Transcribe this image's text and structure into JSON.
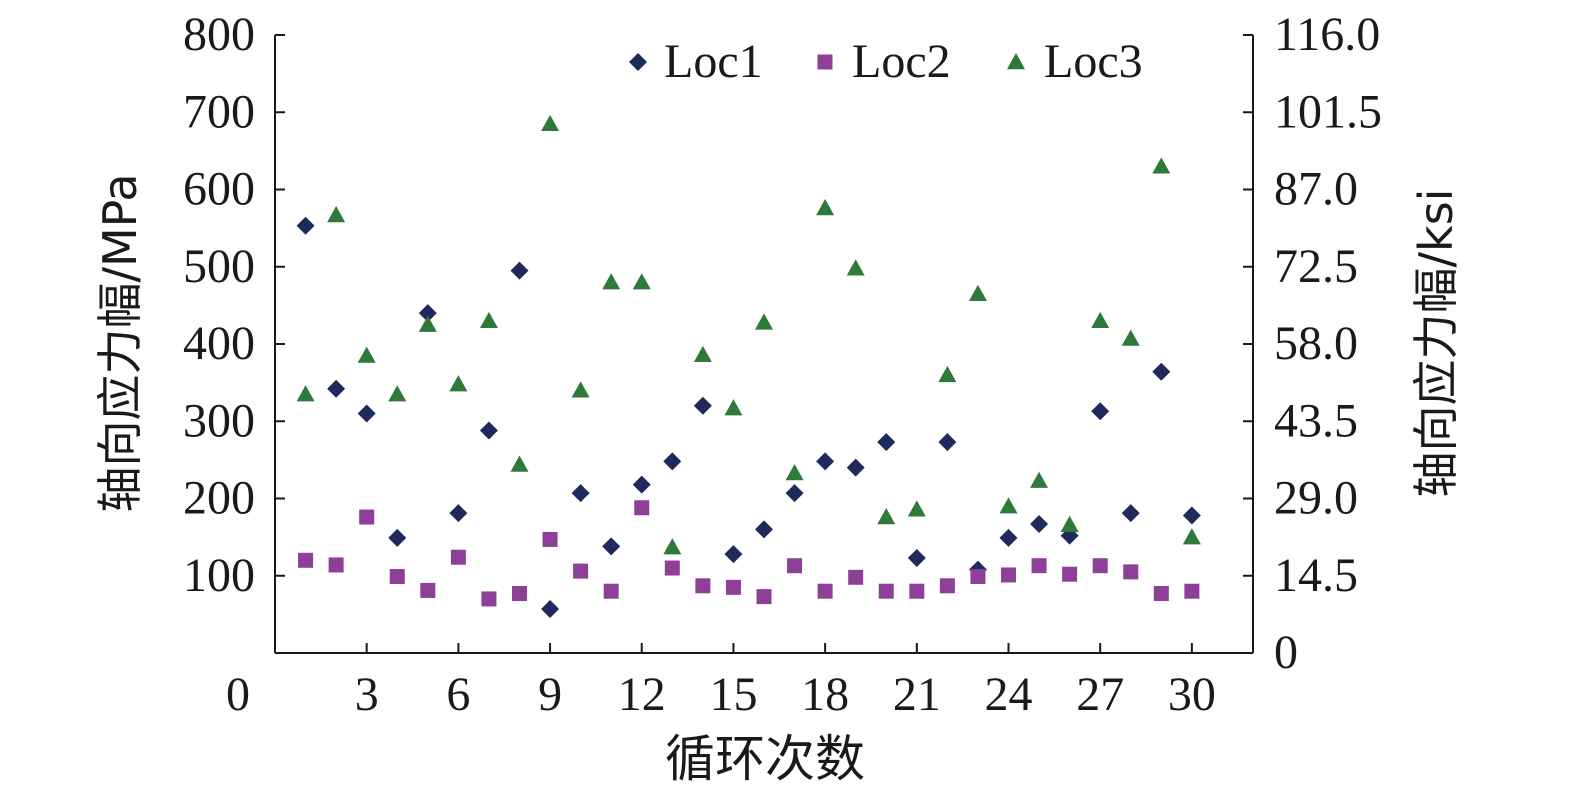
{
  "chart_data": {
    "type": "scatter",
    "title": "",
    "xlabel": "循环次数",
    "ylabel_left": "轴向应力幅/MPa",
    "ylabel_right": "轴向应力幅/ksi",
    "xlim": [
      0,
      32
    ],
    "ylim_left": [
      0,
      800
    ],
    "ylim_right": [
      0,
      116
    ],
    "x_ticks": [
      0,
      3,
      6,
      9,
      12,
      15,
      18,
      21,
      24,
      27,
      30
    ],
    "y_ticks_left": [
      100,
      200,
      300,
      400,
      500,
      600,
      700,
      800
    ],
    "y_ticks_right": [
      "0",
      "14.5",
      "29.0",
      "43.5",
      "58.0",
      "72.5",
      "87.0",
      "101.5",
      "116.0"
    ],
    "grid": false,
    "legend_position": "top-right",
    "series": [
      {
        "name": "Loc1",
        "marker": "diamond",
        "color": "#1f2a5c",
        "x": [
          1,
          2,
          3,
          4,
          5,
          6,
          7,
          8,
          9,
          10,
          11,
          12,
          13,
          14,
          15,
          16,
          17,
          18,
          19,
          20,
          21,
          22,
          23,
          24,
          25,
          26,
          27,
          28,
          29,
          30
        ],
        "y": [
          553,
          342,
          310,
          149,
          440,
          181,
          288,
          495,
          57,
          207,
          138,
          218,
          248,
          320,
          128,
          160,
          207,
          248,
          240,
          273,
          123,
          273,
          108,
          149,
          167,
          152,
          313,
          181,
          364,
          178
        ]
      },
      {
        "name": "Loc2",
        "marker": "square",
        "color": "#8e3f98",
        "x": [
          1,
          2,
          3,
          4,
          5,
          6,
          7,
          8,
          9,
          10,
          11,
          12,
          13,
          14,
          15,
          16,
          17,
          18,
          19,
          20,
          21,
          22,
          23,
          24,
          25,
          26,
          27,
          28,
          29,
          30
        ],
        "y": [
          120,
          114,
          176,
          99,
          81,
          124,
          70,
          77,
          147,
          106,
          80,
          188,
          110,
          87,
          85,
          73,
          113,
          80,
          98,
          80,
          80,
          87,
          99,
          101,
          113,
          102,
          113,
          105,
          77,
          80
        ]
      },
      {
        "name": "Loc3",
        "marker": "triangle",
        "color": "#2f7a3a",
        "x": [
          1,
          2,
          3,
          4,
          5,
          6,
          7,
          8,
          9,
          10,
          11,
          12,
          13,
          14,
          15,
          16,
          17,
          18,
          19,
          20,
          21,
          22,
          23,
          24,
          25,
          26,
          27,
          28,
          29,
          30
        ],
        "y": [
          335,
          567,
          385,
          335,
          425,
          348,
          430,
          244,
          685,
          340,
          480,
          480,
          137,
          386,
          317,
          428,
          233,
          576,
          498,
          176,
          186,
          360,
          465,
          190,
          223,
          166,
          430,
          407,
          630,
          150
        ]
      }
    ]
  }
}
